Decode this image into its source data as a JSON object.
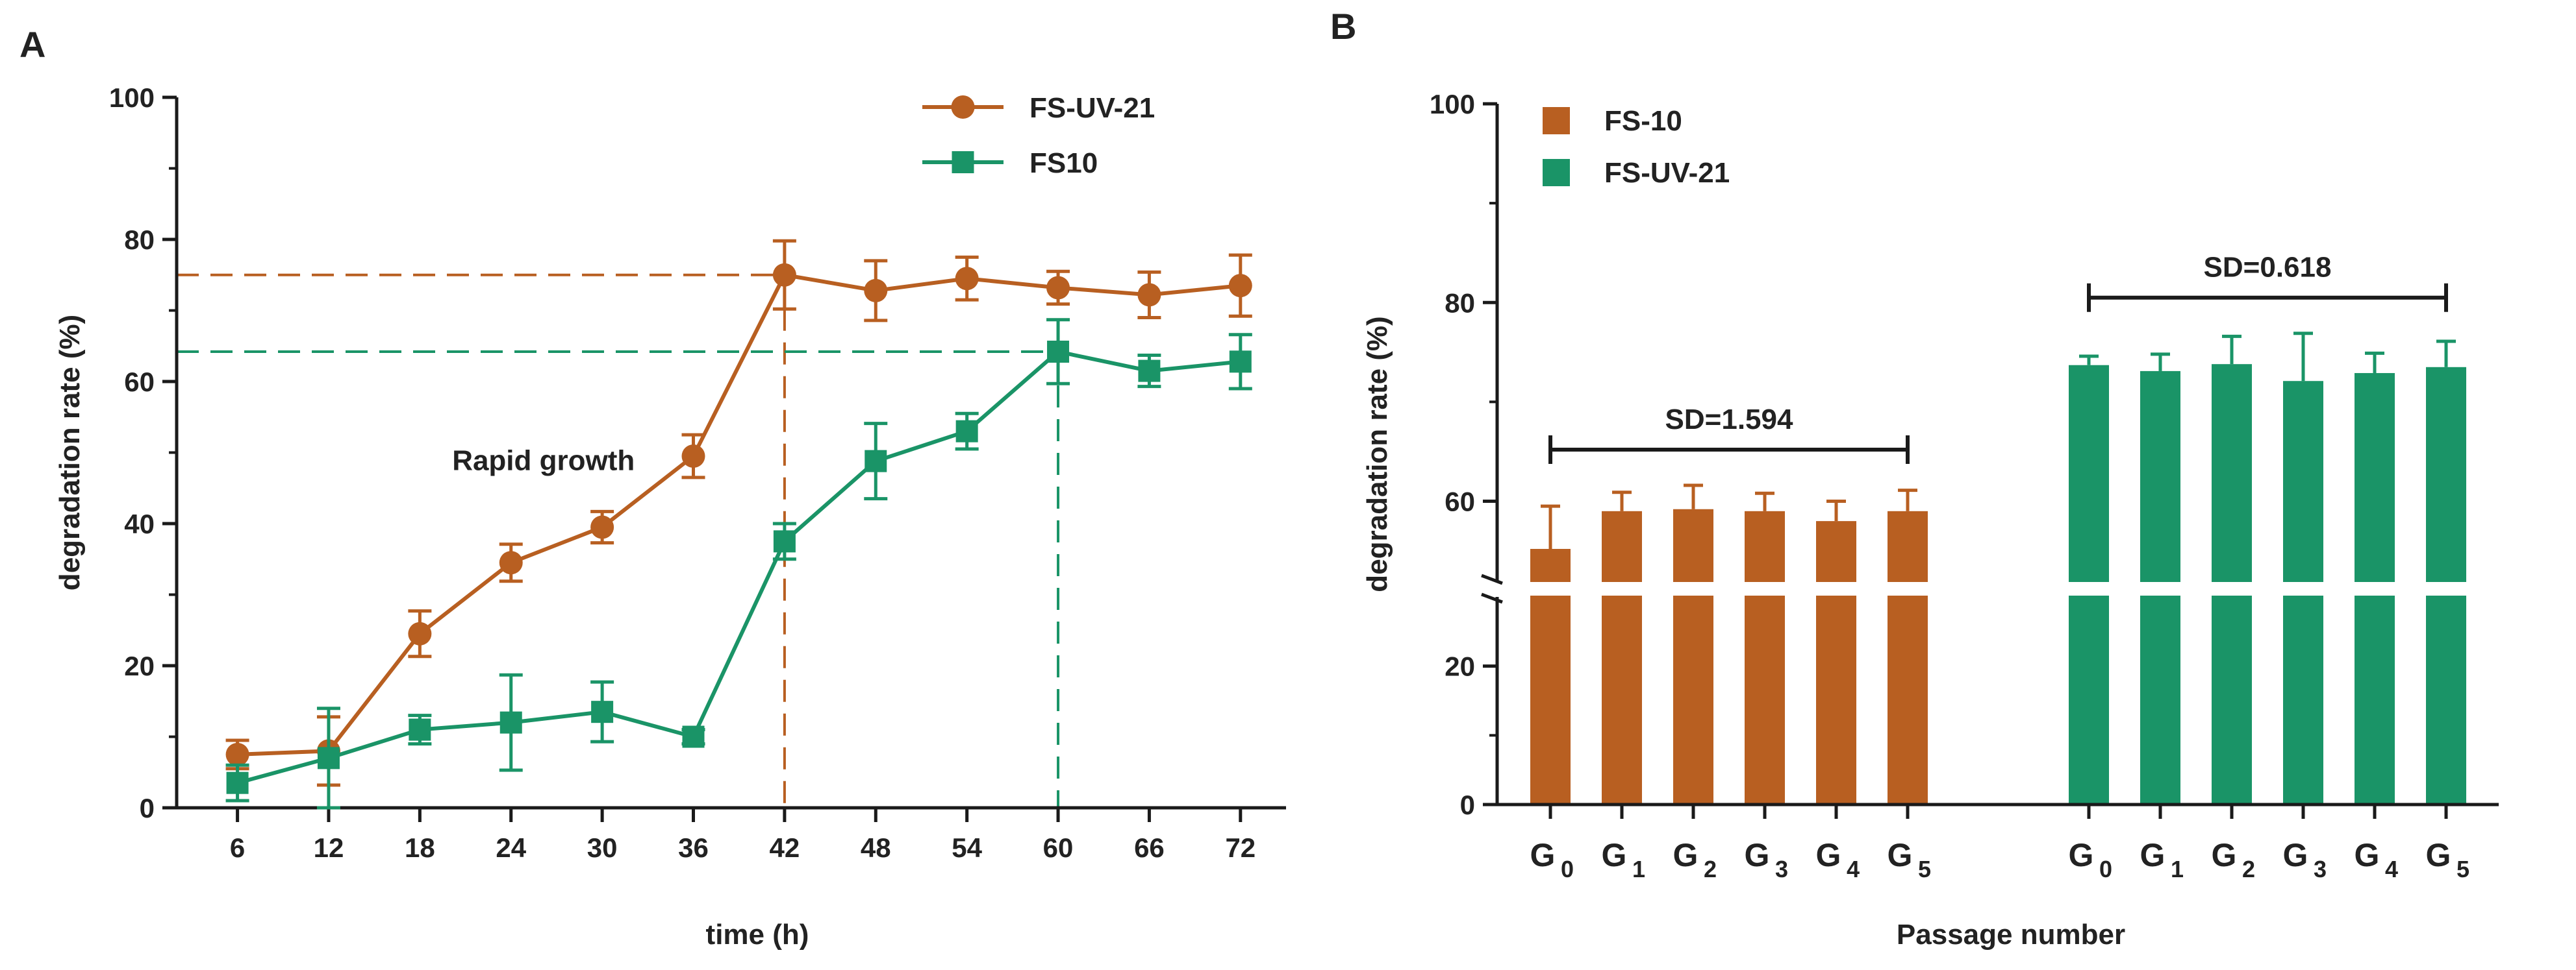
{
  "panels": {
    "a": {
      "letter": "A"
    },
    "b": {
      "letter": "B"
    }
  },
  "colors": {
    "orange": "#B85F21",
    "green": "#1A9467",
    "axis": "#1a1a1a"
  },
  "chart_data": [
    {
      "type": "line",
      "panel": "A",
      "xlabel": "time (h)",
      "ylabel": "degradation rate (%)",
      "x": [
        6,
        12,
        18,
        24,
        30,
        36,
        42,
        48,
        54,
        60,
        66,
        72
      ],
      "xlim": [
        2,
        75
      ],
      "ylim": [
        0,
        100
      ],
      "yticks": [
        0,
        20,
        40,
        60,
        80,
        100
      ],
      "legend_position": "top-right",
      "series": [
        {
          "name": "FS-UV-21",
          "marker": "circle",
          "color": "#B85F21",
          "values": [
            7.5,
            8,
            24.5,
            34.5,
            39.5,
            49.5,
            75,
            72.8,
            74.5,
            73.2,
            72.2,
            73.5
          ],
          "errors": [
            2,
            4.8,
            3.2,
            2.6,
            2.2,
            3,
            4.8,
            4.2,
            3,
            2.3,
            3.2,
            4.3
          ]
        },
        {
          "name": "FS10",
          "marker": "square",
          "color": "#1A9467",
          "values": [
            3.5,
            7,
            11,
            12,
            13.5,
            10,
            37.5,
            48.8,
            53,
            64.2,
            61.5,
            62.8
          ],
          "errors": [
            2.5,
            7,
            2,
            6.7,
            4.2,
            1,
            2.5,
            5.3,
            2.5,
            4.5,
            2.2,
            3.8
          ]
        }
      ],
      "annotations": [
        {
          "text": "Rapid growth",
          "x": 24,
          "y": 49
        }
      ],
      "reference_lines": [
        {
          "series": "FS-UV-21",
          "x": 42,
          "y": 75
        },
        {
          "series": "FS10",
          "x": 60,
          "y": 64.2
        }
      ]
    },
    {
      "type": "bar",
      "panel": "B",
      "xlabel": "Passage number",
      "ylabel": "degradation rate (%)",
      "categories": [
        "G0",
        "G1",
        "G2",
        "G3",
        "G4",
        "G5"
      ],
      "category_labels": [
        {
          "main": "G",
          "sub": "0"
        },
        {
          "main": "G",
          "sub": "1"
        },
        {
          "main": "G",
          "sub": "2"
        },
        {
          "main": "G",
          "sub": "3"
        },
        {
          "main": "G",
          "sub": "4"
        },
        {
          "main": "G",
          "sub": "5"
        }
      ],
      "y_axis_break": [
        30,
        52
      ],
      "yticks": [
        0,
        20,
        60,
        80,
        100
      ],
      "ylim_lower": [
        0,
        30
      ],
      "ylim_upper": [
        52,
        100
      ],
      "legend_position": "top-left",
      "series": [
        {
          "name": "FS-10",
          "color": "#B85F21",
          "values": [
            55.2,
            59,
            59.2,
            59,
            58,
            59
          ],
          "errors": [
            4.3,
            1.9,
            2.4,
            1.8,
            2,
            2.1
          ],
          "sd_label": "SD=1.594"
        },
        {
          "name": "FS-UV-21",
          "color": "#1A9467",
          "values": [
            73.7,
            73.1,
            73.8,
            72.1,
            72.9,
            73.5
          ],
          "errors": [
            0.9,
            1.7,
            2.8,
            4.8,
            2,
            2.6
          ],
          "sd_label": "SD=0.618"
        }
      ]
    }
  ]
}
